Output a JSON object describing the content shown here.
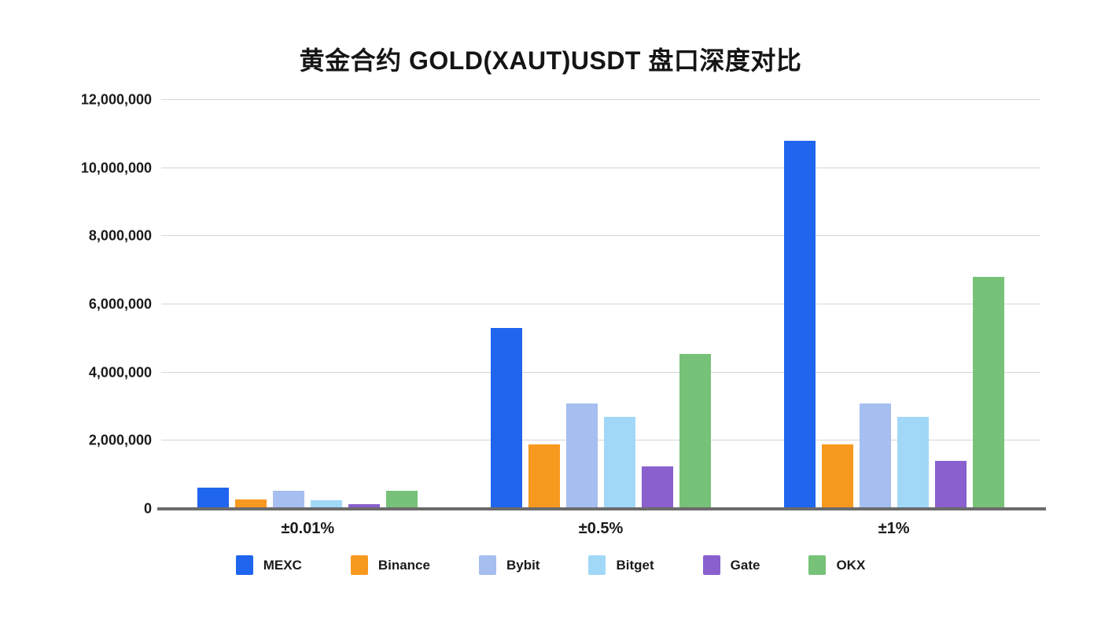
{
  "chart_data": {
    "type": "bar",
    "title": "黄金合约 GOLD(XAUT)USDT 盘口深度对比",
    "categories": [
      "±0.01%",
      "±0.5%",
      "±1%"
    ],
    "series": [
      {
        "name": "MEXC",
        "color": "#2065ee",
        "values": [
          620000,
          5300000,
          10800000
        ]
      },
      {
        "name": "Binance",
        "color": "#f8991f",
        "values": [
          280000,
          1900000,
          1900000
        ]
      },
      {
        "name": "Bybit",
        "color": "#a6bef0",
        "values": [
          520000,
          3100000,
          3100000
        ]
      },
      {
        "name": "Bitget",
        "color": "#a2d8f7",
        "values": [
          260000,
          2700000,
          2700000
        ]
      },
      {
        "name": "Gate",
        "color": "#8a5fce",
        "values": [
          150000,
          1250000,
          1400000
        ]
      },
      {
        "name": "OKX",
        "color": "#77c278",
        "values": [
          520000,
          4550000,
          6800000
        ]
      }
    ],
    "xlabel": "",
    "ylabel": "",
    "ylim": [
      0,
      12000000
    ],
    "ytick_step": 2000000,
    "ytick_labels": [
      "0",
      "2,000,000",
      "4,000,000",
      "6,000,000",
      "8,000,000",
      "10,000,000",
      "12,000,000"
    ],
    "grid": true,
    "legend_position": "bottom"
  },
  "colors": {
    "background": "#ffffff",
    "gridline": "#d6d6d6",
    "axis_line": "#6b6b6b",
    "text": "#1b1b1b"
  }
}
